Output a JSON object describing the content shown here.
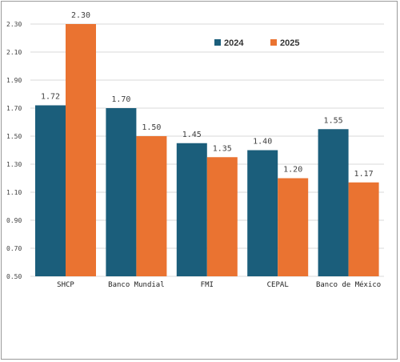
{
  "chart_data": {
    "type": "bar",
    "categories": [
      "SHCP",
      "Banco Mundial",
      "FMI",
      "CEPAL",
      "Banco de México"
    ],
    "series": [
      {
        "name": "2024",
        "color": "#1b5e7b",
        "values": [
          1.72,
          1.7,
          1.45,
          1.4,
          1.55
        ],
        "labels": [
          "1.72",
          "1.70",
          "1.45",
          "1.40",
          "1.55"
        ]
      },
      {
        "name": "2025",
        "color": "#ea7331",
        "values": [
          2.3,
          1.5,
          1.35,
          1.2,
          1.17
        ],
        "labels": [
          "2.30",
          "1.50",
          "1.35",
          "1.20",
          "1.17"
        ]
      }
    ],
    "ylim": [
      0.5,
      2.3
    ],
    "yticks": [
      "0.50",
      "0.70",
      "0.90",
      "1.10",
      "1.30",
      "1.50",
      "1.70",
      "1.90",
      "2.10",
      "2.30"
    ],
    "grid": true,
    "legend_position": "top-right",
    "title": "",
    "xlabel": "",
    "ylabel": ""
  }
}
